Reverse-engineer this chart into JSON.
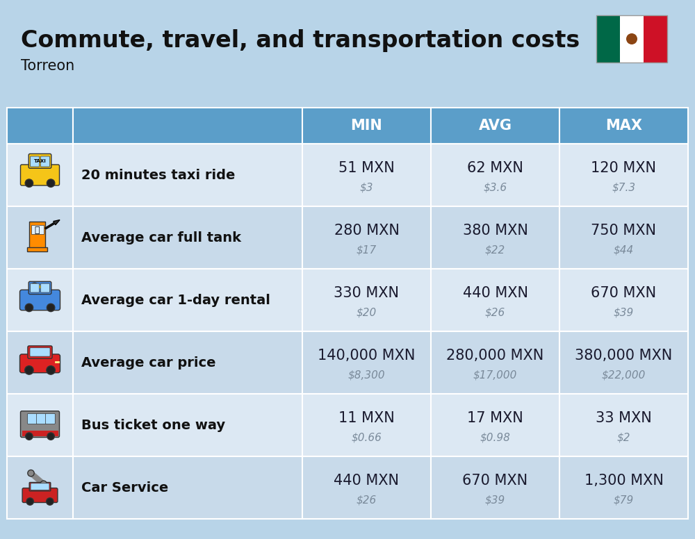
{
  "title": "Commute, travel, and transportation costs",
  "subtitle": "Torreon",
  "background_color": "#b8d4e8",
  "header_color": "#5b9ec9",
  "header_text_color": "#ffffff",
  "row_colors": [
    "#dce8f3",
    "#c8daea"
  ],
  "rows": [
    {
      "label": "20 minutes taxi ride",
      "min_mxn": "51 MXN",
      "min_usd": "$3",
      "avg_mxn": "62 MXN",
      "avg_usd": "$3.6",
      "max_mxn": "120 MXN",
      "max_usd": "$7.3"
    },
    {
      "label": "Average car full tank",
      "min_mxn": "280 MXN",
      "min_usd": "$17",
      "avg_mxn": "380 MXN",
      "avg_usd": "$22",
      "max_mxn": "750 MXN",
      "max_usd": "$44"
    },
    {
      "label": "Average car 1-day rental",
      "min_mxn": "330 MXN",
      "min_usd": "$20",
      "avg_mxn": "440 MXN",
      "avg_usd": "$26",
      "max_mxn": "670 MXN",
      "max_usd": "$39"
    },
    {
      "label": "Average car price",
      "min_mxn": "140,000 MXN",
      "min_usd": "$8,300",
      "avg_mxn": "280,000 MXN",
      "avg_usd": "$17,000",
      "max_mxn": "380,000 MXN",
      "max_usd": "$22,000"
    },
    {
      "label": "Bus ticket one way",
      "min_mxn": "11 MXN",
      "min_usd": "$0.66",
      "avg_mxn": "17 MXN",
      "avg_usd": "$0.98",
      "max_mxn": "33 MXN",
      "max_usd": "$2"
    },
    {
      "label": "Car Service",
      "min_mxn": "440 MXN",
      "min_usd": "$26",
      "avg_mxn": "670 MXN",
      "avg_usd": "$39",
      "max_mxn": "1,300 MXN",
      "max_usd": "$79"
    }
  ],
  "title_fontsize": 24,
  "subtitle_fontsize": 15,
  "header_fontsize": 15,
  "cell_mxn_fontsize": 15,
  "cell_usd_fontsize": 11,
  "label_fontsize": 14
}
